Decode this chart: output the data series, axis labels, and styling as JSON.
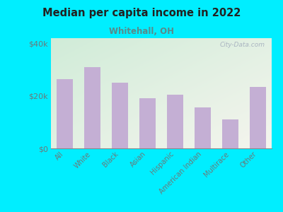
{
  "title": "Median per capita income in 2022",
  "subtitle": "Whitehall, OH",
  "categories": [
    "All",
    "White",
    "Black",
    "Asian",
    "Hispanic",
    "American Indian",
    "Multirace",
    "Other"
  ],
  "values": [
    26500,
    31000,
    25000,
    19000,
    20500,
    15500,
    11000,
    23500
  ],
  "bar_color": "#c4afd4",
  "background_outer": "#00eeff",
  "title_color": "#222222",
  "subtitle_color": "#5a8a8a",
  "tick_label_color": "#6a7a7a",
  "watermark_text": "City-Data.com",
  "watermark_color": "#a0aabb",
  "ylim": [
    0,
    42000
  ],
  "yticks": [
    0,
    20000,
    40000
  ],
  "ytick_labels": [
    "$0",
    "$20k",
    "$40k"
  ],
  "gradient_top_left": "#d0ecd8",
  "gradient_bottom_right": "#f5f5ee"
}
